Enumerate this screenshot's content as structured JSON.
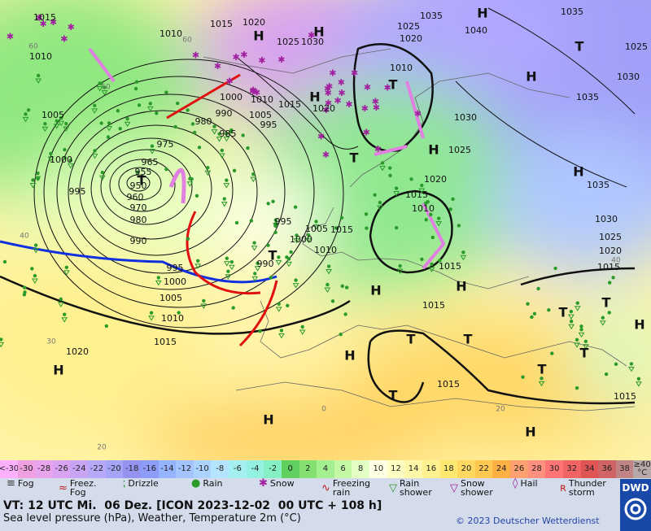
{
  "map": {
    "pressure_labels": [
      "1015",
      "1010",
      "1015",
      "1020",
      "1025",
      "1030",
      "1035",
      "1040",
      "1035",
      "1025",
      "1030",
      "1035",
      "1030",
      "1025",
      "1020",
      "1015",
      "1010",
      "1015",
      "1015",
      "1015",
      "1015",
      "1030",
      "1035",
      "1025",
      "1020",
      "1015",
      "1010",
      "1005",
      "1000",
      "995",
      "1000",
      "1010",
      "1015",
      "1020",
      "990",
      "980",
      "985",
      "1005",
      "995",
      "975",
      "965",
      "955",
      "950",
      "960",
      "970",
      "980",
      "990",
      "995",
      "1005",
      "1000",
      "1010",
      "1015",
      "990",
      "995",
      "1000",
      "1005",
      "1010",
      "1015",
      "1020",
      "1025",
      "1020",
      "1010"
    ],
    "pressure_centers": [
      "H",
      "H",
      "H",
      "T",
      "H",
      "T",
      "H",
      "T",
      "H",
      "H",
      "T",
      "H",
      "H",
      "T",
      "T",
      "H",
      "T",
      "T",
      "H",
      "T",
      "T",
      "T",
      "H",
      "H",
      "H",
      "T"
    ],
    "isotherm_labels": [
      "60",
      "60",
      "50",
      "40",
      "40",
      "30",
      "20",
      "20",
      "0"
    ]
  },
  "color_scale": {
    "low_label": "<-30",
    "high_label": "≥40",
    "unit": "°C",
    "values": [
      -30,
      -28,
      -26,
      -24,
      -22,
      -20,
      -18,
      -16,
      -14,
      -12,
      -10,
      -8,
      -6,
      -4,
      -2,
      0,
      2,
      4,
      6,
      8,
      10,
      12,
      14,
      16,
      18,
      20,
      22,
      24,
      26,
      28,
      30,
      32,
      34,
      36,
      38
    ],
    "colors": [
      "#f0a0e0",
      "#e8a4ec",
      "#d8a4f2",
      "#c8a4f4",
      "#b8a8f8",
      "#a4a4f8",
      "#9494f0",
      "#8c9cf8",
      "#94b4ff",
      "#a4c4ff",
      "#acd4ff",
      "#b4e4ff",
      "#a4f0f0",
      "#94f0e0",
      "#84f0c4",
      "#60d060",
      "#84e070",
      "#a4f090",
      "#c4f8a4",
      "#e4ffc4",
      "#ffffe4",
      "#ffffc4",
      "#fff8a8",
      "#fff090",
      "#ffe870",
      "#ffd860",
      "#ffc850",
      "#ffb044",
      "#ffa070",
      "#ff9080",
      "#ff7474",
      "#f06464",
      "#e05454",
      "#d06464",
      "#c08484"
    ],
    "low_color": "#ffb0ff",
    "high_color": "#b8a8a8"
  },
  "legend": [
    "Fog",
    "Freez. Fog",
    "Drizzle",
    "Rain",
    "Snow",
    "Freezing rain",
    "Rain shower",
    "Snow shower",
    "Hail",
    "Thunder storm"
  ],
  "footer": {
    "valid_time": "VT: 12 UTC Mi.  06 Dez. [ICON 2023-12-02  00 UTC + 108 h]",
    "description": "Sea level pressure (hPa), Weather, Temperature 2m (°C)",
    "copyright": "© 2023 Deutscher Wetterdienst",
    "logo": "DWD"
  }
}
